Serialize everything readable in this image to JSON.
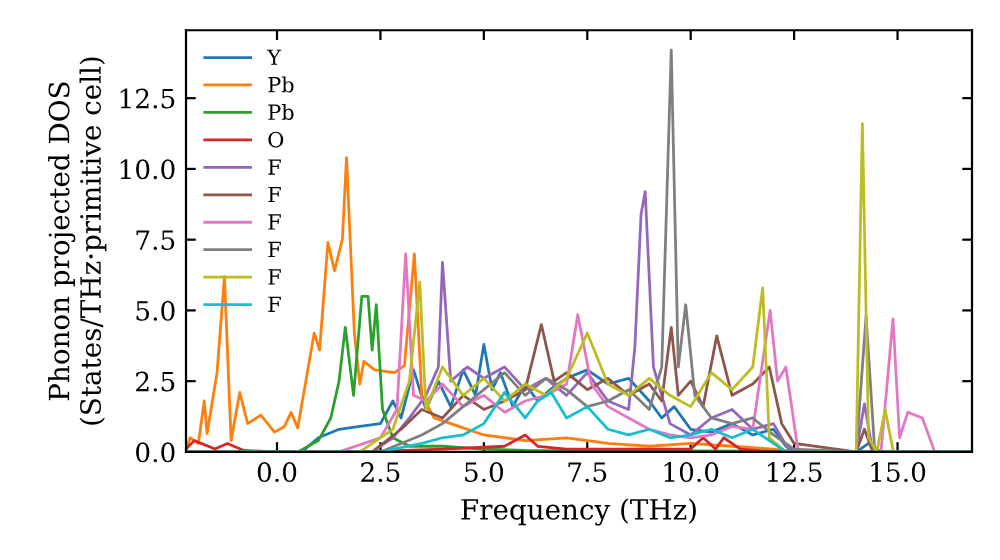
{
  "chart_data": {
    "type": "line",
    "xlabel": "Frequency (THz)",
    "ylabel": "Phonon projected DOS\n(States/THz·primitive cell)",
    "xlim": [
      -2.2,
      16.8
    ],
    "ylim": [
      0,
      14.9
    ],
    "xticks": [
      {
        "value": 0,
        "label": "0.0"
      },
      2.5,
      {
        "value": 5,
        "label": "5.0"
      },
      7.5,
      {
        "value": 10,
        "label": "10.0"
      },
      12.5,
      {
        "value": 15,
        "label": "15.0"
      }
    ],
    "yticks": [
      {
        "value": 0,
        "label": "0.0"
      },
      2.5,
      {
        "value": 5,
        "label": "5.0"
      },
      7.5,
      {
        "value": 10,
        "label": "10.0"
      },
      12.5
    ],
    "grid": false,
    "legend": "top left",
    "marker": "none",
    "line_style": "solid",
    "series": [
      {
        "name": "Y",
        "color": "#1f77b4",
        "x": [
          -2.2,
          0.6,
          1.0,
          1.5,
          2.0,
          2.5,
          2.8,
          3.0,
          3.3,
          3.6,
          3.9,
          4.2,
          4.5,
          4.8,
          5.0,
          5.2,
          5.4,
          5.7,
          6.0,
          6.3,
          6.6,
          7.0,
          7.5,
          8.0,
          8.5,
          9.0,
          9.3,
          9.6,
          10.0,
          10.5,
          11.0,
          11.5,
          12.0,
          12.3,
          12.6,
          14.0,
          14.3,
          14.6,
          16.8
        ],
        "values": [
          0,
          0,
          0.5,
          0.8,
          0.9,
          1.0,
          1.8,
          1.2,
          2.9,
          1.5,
          2.5,
          1.6,
          2.9,
          2.0,
          3.8,
          2.2,
          2.8,
          1.6,
          2.4,
          1.8,
          2.2,
          2.6,
          2.9,
          2.4,
          2.6,
          1.8,
          1.2,
          1.6,
          0.8,
          0.7,
          1.0,
          0.6,
          0.8,
          0.2,
          0,
          0,
          0.3,
          0,
          0
        ]
      },
      {
        "name": "Pb",
        "color": "#ff7f0e",
        "x": [
          -2.2,
          -2.1,
          -1.9,
          -1.76,
          -1.69,
          -1.45,
          -1.27,
          -1.11,
          -0.9,
          -0.71,
          -0.39,
          -0.06,
          0.18,
          0.34,
          0.5,
          0.9,
          1.03,
          1.23,
          1.39,
          1.58,
          1.68,
          1.87,
          2.0,
          2.1,
          2.36,
          2.84,
          3.08,
          3.32,
          3.5,
          3.8,
          4.2,
          5.0,
          6.0,
          7.0,
          8.0,
          9.0,
          10.0,
          11.0,
          12.0,
          12.5,
          16.8
        ],
        "values": [
          0.1,
          0.5,
          0.3,
          1.8,
          0.65,
          2.8,
          6.2,
          0.4,
          2.1,
          1.0,
          1.3,
          0.7,
          0.9,
          1.4,
          0.85,
          4.2,
          3.6,
          7.4,
          6.4,
          7.5,
          10.4,
          4.2,
          2.4,
          3.2,
          2.9,
          2.8,
          3.05,
          7.0,
          2.0,
          1.2,
          1.0,
          0.6,
          0.4,
          0.5,
          0.3,
          0.2,
          0.3,
          0.2,
          0.1,
          0,
          0
        ]
      },
      {
        "name": "Pb",
        "color": "#2ca02c",
        "x": [
          -2.2,
          0.5,
          1.0,
          1.3,
          1.5,
          1.65,
          1.85,
          2.05,
          2.2,
          2.3,
          2.4,
          2.55,
          2.8,
          3.2,
          4.0,
          5.0,
          6.0,
          16.8
        ],
        "values": [
          0,
          0,
          0.4,
          1.2,
          2.5,
          4.4,
          2.0,
          5.5,
          5.5,
          3.6,
          5.2,
          1.5,
          0.5,
          0.2,
          0.2,
          0.1,
          0.05,
          0
        ]
      },
      {
        "name": "O",
        "color": "#d62728",
        "x": [
          -2.2,
          -2.0,
          -1.5,
          -1.2,
          -0.8,
          0,
          2,
          4.0,
          5.5,
          6.0,
          6.3,
          7,
          8,
          10.0,
          10.3,
          10.6,
          10.8,
          11.2,
          12,
          16.8
        ],
        "values": [
          0.1,
          0.4,
          0.1,
          0.3,
          0.05,
          0,
          0,
          0.1,
          0.2,
          0.6,
          0.2,
          0.1,
          0.1,
          0.1,
          0.5,
          0.1,
          0.5,
          0.1,
          0,
          0
        ]
      },
      {
        "name": "F",
        "color": "#9467bd",
        "x": [
          -2.2,
          2.3,
          2.8,
          3.2,
          3.6,
          3.9,
          4.0,
          4.2,
          4.6,
          5.0,
          5.5,
          6.0,
          6.5,
          7.0,
          7.5,
          8.0,
          8.5,
          8.65,
          8.8,
          8.9,
          9.1,
          9.5,
          10.0,
          10.5,
          11.0,
          11.5,
          12.0,
          12.4,
          14.0,
          14.2,
          14.4,
          16.8
        ],
        "values": [
          0,
          0,
          0.5,
          1.2,
          2.0,
          3.0,
          6.7,
          2.5,
          3.0,
          2.6,
          3.0,
          2.2,
          2.6,
          2.0,
          2.8,
          1.8,
          1.5,
          3.7,
          8.4,
          9.2,
          3.0,
          1.0,
          0.6,
          1.2,
          1.5,
          0.8,
          1.0,
          0,
          0,
          1.7,
          0,
          0
        ]
      },
      {
        "name": "F",
        "color": "#8c564b",
        "x": [
          -2.2,
          2.3,
          3.0,
          3.5,
          4.0,
          4.5,
          5.0,
          5.5,
          6.0,
          6.39,
          6.7,
          7.0,
          7.5,
          8.0,
          8.5,
          9.0,
          9.3,
          9.53,
          9.7,
          10.0,
          10.3,
          10.63,
          11.0,
          11.5,
          11.9,
          12.2,
          12.5,
          14.0,
          14.2,
          14.4,
          16.8
        ],
        "values": [
          0,
          0,
          0.8,
          1.5,
          1.2,
          2.0,
          1.5,
          1.8,
          2.2,
          4.5,
          2.5,
          2.8,
          2.2,
          2.6,
          2.0,
          2.4,
          1.8,
          4.4,
          2.0,
          2.5,
          1.6,
          4.1,
          2.0,
          2.4,
          3.0,
          1.0,
          0.3,
          0,
          0.8,
          0,
          0
        ]
      },
      {
        "name": "F",
        "color": "#e377c2",
        "x": [
          -2.2,
          1.5,
          2.5,
          2.9,
          3.11,
          3.3,
          3.6,
          4.0,
          4.5,
          5.0,
          5.5,
          6.0,
          6.5,
          7.0,
          7.27,
          7.6,
          8.0,
          8.5,
          9.0,
          9.5,
          10.0,
          10.5,
          11.0,
          11.5,
          11.92,
          12.1,
          12.3,
          12.6,
          14.6,
          14.89,
          15.05,
          15.25,
          15.6,
          15.9,
          16.8
        ],
        "values": [
          0,
          0,
          0.5,
          1.5,
          7.0,
          2.0,
          1.8,
          2.4,
          1.6,
          2.0,
          1.4,
          1.8,
          2.0,
          2.4,
          4.85,
          2.4,
          1.6,
          1.2,
          0.8,
          0.6,
          0.5,
          0.6,
          0.9,
          0.8,
          5.0,
          2.5,
          3.0,
          0,
          0,
          4.7,
          0.5,
          1.4,
          1.2,
          0,
          0
        ]
      },
      {
        "name": "F",
        "color": "#7f7f7f",
        "x": [
          -2.2,
          2.5,
          3.0,
          3.5,
          4.0,
          4.5,
          5.0,
          5.5,
          6.0,
          6.5,
          7.0,
          7.5,
          8.0,
          8.5,
          9.0,
          9.3,
          9.53,
          9.7,
          9.88,
          10.1,
          10.5,
          11.0,
          11.5,
          12.0,
          12.5,
          14.0,
          14.24,
          14.45,
          16.8
        ],
        "values": [
          0,
          0,
          0.3,
          0.6,
          1.0,
          1.6,
          2.2,
          2.8,
          2.0,
          2.6,
          2.2,
          1.6,
          1.8,
          2.2,
          1.5,
          3.0,
          14.2,
          3.0,
          5.2,
          2.0,
          1.2,
          1.0,
          1.2,
          0.6,
          0.1,
          0,
          4.8,
          0,
          0
        ]
      },
      {
        "name": "F",
        "color": "#bcbd22",
        "x": [
          -2.2,
          2.0,
          2.8,
          3.2,
          3.45,
          3.6,
          4.0,
          4.5,
          5.0,
          5.5,
          6.0,
          6.5,
          7.0,
          7.5,
          8.0,
          8.5,
          9.0,
          9.5,
          10.0,
          10.5,
          11.0,
          11.5,
          11.74,
          11.9,
          12.3,
          14.0,
          14.15,
          14.3,
          14.5,
          14.7,
          14.9,
          16.8
        ],
        "values": [
          0,
          0,
          0.8,
          2.5,
          6.0,
          1.5,
          3.0,
          2.0,
          2.6,
          1.8,
          2.4,
          2.0,
          2.6,
          4.2,
          2.4,
          2.0,
          2.6,
          2.0,
          1.6,
          2.8,
          2.2,
          3.0,
          5.8,
          0.5,
          0,
          0,
          11.6,
          0.5,
          0,
          1.5,
          0,
          0
        ]
      },
      {
        "name": "F",
        "color": "#17becf",
        "x": [
          -2.2,
          2.5,
          3.5,
          4.0,
          4.5,
          5.0,
          5.5,
          6.0,
          6.3,
          6.63,
          7.0,
          7.5,
          8.0,
          8.5,
          9.0,
          9.5,
          10.0,
          10.5,
          11.0,
          11.5,
          12.0,
          12.3,
          16.8
        ],
        "values": [
          0,
          0,
          0.3,
          0.5,
          0.6,
          1.0,
          2.1,
          1.2,
          1.8,
          2.1,
          1.2,
          1.6,
          0.8,
          0.6,
          0.8,
          0.5,
          0.6,
          0.8,
          0.5,
          0.8,
          0.3,
          0,
          0
        ]
      }
    ]
  }
}
